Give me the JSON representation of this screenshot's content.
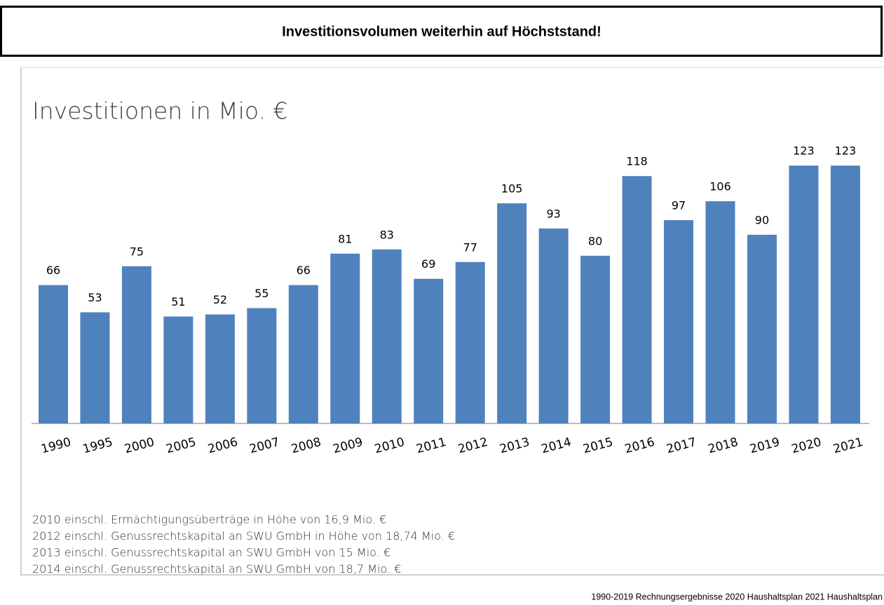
{
  "header": {
    "title": "Investitionsvolumen weiterhin auf Höchststand!"
  },
  "chart_data": {
    "type": "bar",
    "title": "Investitionen in Mio. €",
    "categories": [
      "1990",
      "1995",
      "2000",
      "2005",
      "2006",
      "2007",
      "2008",
      "2009",
      "2010",
      "2011",
      "2012",
      "2013",
      "2014",
      "2015",
      "2016",
      "2017",
      "2018",
      "2019",
      "2020",
      "2021"
    ],
    "values": [
      66,
      53,
      75,
      51,
      52,
      55,
      66,
      81,
      83,
      69,
      77,
      105,
      93,
      80,
      118,
      97,
      106,
      90,
      123,
      123
    ],
    "color": "#4f81bd",
    "ylim": [
      0,
      140
    ]
  },
  "notes": [
    "2010 einschl. Ermächtigungsüberträge in Höhe von 16,9 Mio. €",
    "2012 einschl. Genussrechtskapital an SWU GmbH in Höhe von 18,74 Mio. €",
    "2013 einschl. Genussrechtskapital an SWU GmbH von 15 Mio. €",
    "2014 einschl. Genussrechtskapital an SWU GmbH von 18,7 Mio. €"
  ],
  "source": "1990-2019 Rechnungsergebnisse   2020 Haushaltsplan   2021 Haushaltsplan"
}
